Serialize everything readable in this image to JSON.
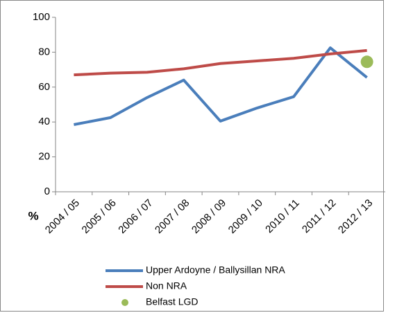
{
  "chart_data": {
    "type": "line",
    "ylabel": "%",
    "categories": [
      "2004 / 05",
      "2005 / 06",
      "2006 / 07",
      "2007 / 08",
      "2008 / 09",
      "2009 / 10",
      "2010 / 11",
      "2011 / 12",
      "2012 / 13"
    ],
    "series": [
      {
        "name": "Upper Ardoyne / Ballysillan NRA",
        "color": "#4a7ebb",
        "mode": "line",
        "values": [
          38.5,
          42.5,
          54,
          64,
          40.5,
          48,
          54.5,
          82.5,
          65.5
        ]
      },
      {
        "name": "Non NRA",
        "color": "#be4b48",
        "mode": "line",
        "values": [
          67,
          68,
          68.5,
          70.5,
          73.5,
          75,
          76.5,
          79,
          81
        ]
      },
      {
        "name": "Belfast LGD",
        "color": "#9bbb59",
        "mode": "marker",
        "values": [
          null,
          null,
          null,
          null,
          null,
          null,
          null,
          null,
          74.5
        ]
      }
    ],
    "ylim": [
      0,
      100
    ],
    "yticks": [
      0,
      20,
      40,
      60,
      80,
      100
    ],
    "grid": false
  }
}
